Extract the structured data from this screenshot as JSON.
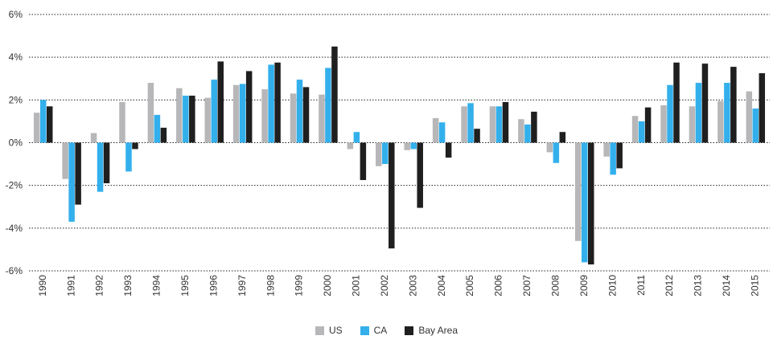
{
  "chart_data": {
    "type": "bar",
    "categories": [
      "1990",
      "1991",
      "1992",
      "1993",
      "1994",
      "1995",
      "1996",
      "1997",
      "1998",
      "1999",
      "2000",
      "2001",
      "2002",
      "2003",
      "2004",
      "2005",
      "2006",
      "2007",
      "2008",
      "2009",
      "2010",
      "2011",
      "2012",
      "2013",
      "2014",
      "2015"
    ],
    "series": [
      {
        "name": "US",
        "color": "#b7b7b9",
        "values": [
          1.4,
          -1.7,
          0.45,
          1.9,
          2.8,
          2.55,
          2.1,
          2.7,
          2.5,
          2.3,
          2.25,
          -0.3,
          -1.1,
          -0.35,
          1.15,
          1.7,
          1.7,
          1.1,
          -0.45,
          -4.6,
          -0.65,
          1.25,
          1.75,
          1.7,
          1.95,
          2.4
        ]
      },
      {
        "name": "CA",
        "color": "#33b0ec",
        "values": [
          2.0,
          -3.7,
          -2.3,
          -1.35,
          1.3,
          2.2,
          2.95,
          2.75,
          3.65,
          2.95,
          3.5,
          0.5,
          -1.0,
          -0.3,
          0.95,
          1.85,
          1.7,
          0.85,
          -0.95,
          -5.6,
          -1.5,
          1.0,
          2.7,
          2.8,
          2.8,
          1.6
        ]
      },
      {
        "name": "Bay Area",
        "color": "#1f1f1f",
        "values": [
          1.7,
          -2.9,
          -1.9,
          -0.3,
          0.7,
          2.2,
          3.8,
          3.35,
          3.75,
          2.6,
          4.5,
          -1.75,
          -4.95,
          -3.05,
          -0.7,
          0.65,
          1.9,
          1.45,
          0.5,
          -5.7,
          -1.2,
          1.65,
          3.75,
          3.7,
          3.55,
          3.25
        ]
      }
    ],
    "yticks": [
      "6%",
      "4%",
      "2%",
      "0%",
      "-2%",
      "-4%",
      "-6%"
    ],
    "ylim": [
      -6,
      6
    ],
    "grid": true,
    "legend_position": "bottom"
  }
}
